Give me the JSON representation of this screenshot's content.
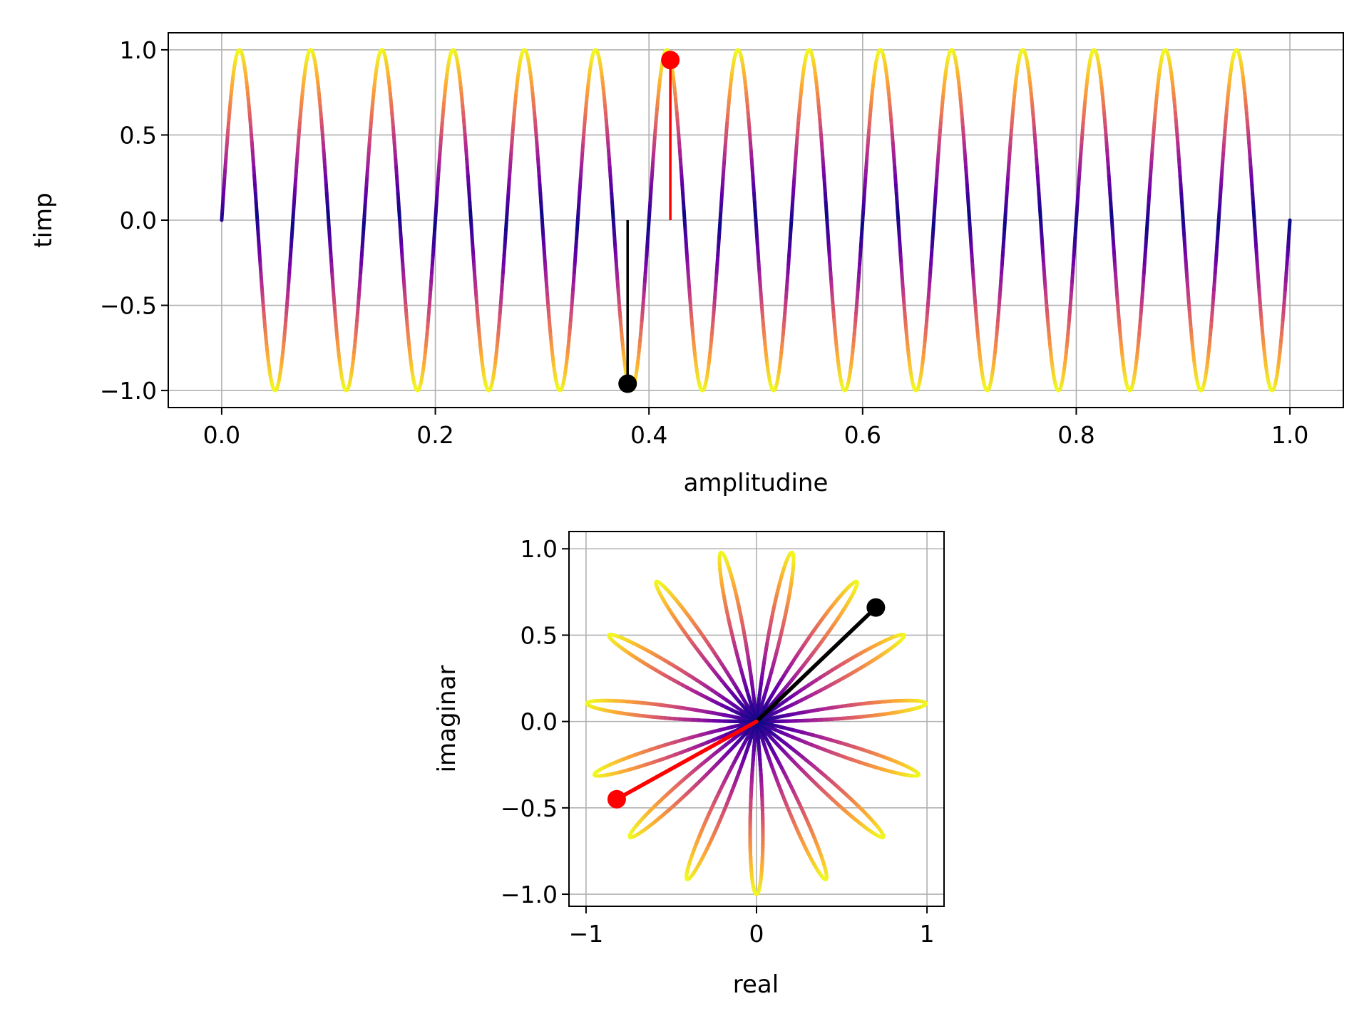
{
  "chart_data": [
    {
      "type": "line",
      "role": "time-domain",
      "xlabel": "amplitudine",
      "ylabel": "timp",
      "xlim": [
        -0.05,
        1.05
      ],
      "ylim": [
        -1.1,
        1.1
      ],
      "xticks": [
        0.0,
        0.2,
        0.4,
        0.6,
        0.8,
        1.0
      ],
      "xtick_labels": [
        "0.0",
        "0.2",
        "0.4",
        "0.6",
        "0.8",
        "1.0"
      ],
      "yticks": [
        1.0,
        0.5,
        0.0,
        -0.5,
        -1.0
      ],
      "ytick_labels": [
        "1.0",
        "0.5",
        "0.0",
        "−0.5",
        "−1.0"
      ],
      "grid": true,
      "series": [
        {
          "function": "sin(2*pi*frequency*x)",
          "frequency": 15,
          "x_range": [
            0.0,
            1.0
          ],
          "colormap": "plasma",
          "color_by": "abs(y)",
          "colormap_stops": [
            "#0d0887",
            "#6a00a8",
            "#b12a90",
            "#e16462",
            "#fca636",
            "#f0f921"
          ]
        }
      ],
      "markers": [
        {
          "x": 0.38,
          "y": -0.96,
          "stem_from": 0.0,
          "color": "#000000"
        },
        {
          "x": 0.42,
          "y": 0.94,
          "stem_from": 0.0,
          "color": "#ff0000"
        }
      ]
    },
    {
      "type": "line",
      "role": "complex-plane",
      "xlabel": "real",
      "ylabel": "imaginar",
      "xlim": [
        -1.1,
        1.1
      ],
      "ylim": [
        -1.07,
        1.1
      ],
      "xticks": [
        -1,
        0,
        1
      ],
      "xtick_labels": [
        "−1",
        "0",
        "1"
      ],
      "yticks": [
        1.0,
        0.5,
        0.0,
        -0.5,
        -1.0
      ],
      "ytick_labels": [
        "1.0",
        "0.5",
        "0.0",
        "−0.5",
        "−1.0"
      ],
      "grid": true,
      "series": [
        {
          "curve": "real = sin(2*pi*15*t)*cos(2*pi*t), imaginar = sin(2*pi*15*t)*sin(2*pi*t)",
          "t_range": [
            0.0,
            1.0
          ],
          "colormap": "plasma",
          "color_by": "radius"
        }
      ],
      "markers": [
        {
          "x": 0.7,
          "y": 0.66,
          "from": [
            0,
            0
          ],
          "color": "#000000"
        },
        {
          "x": -0.82,
          "y": -0.45,
          "from": [
            0,
            0
          ],
          "color": "#ff0000"
        }
      ]
    }
  ]
}
